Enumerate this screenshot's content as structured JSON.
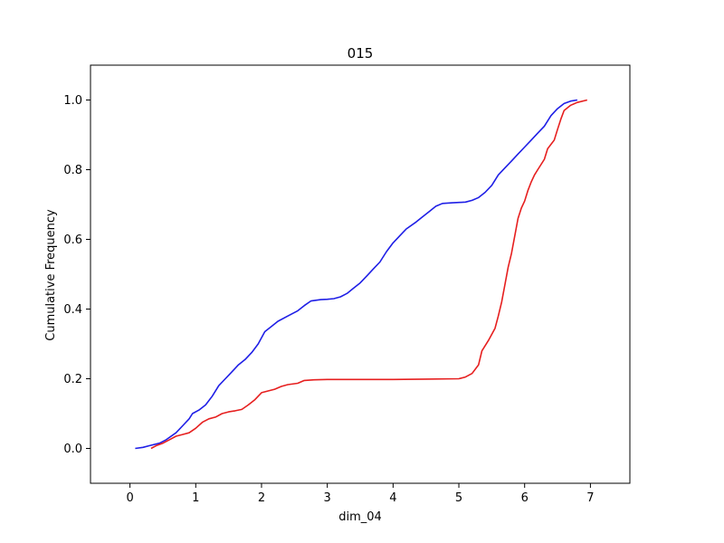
{
  "chart_data": {
    "type": "line",
    "title": "015",
    "xlabel": "dim_04",
    "ylabel": "Cumulative Frequency",
    "xlim": [
      -0.6,
      7.6
    ],
    "ylim": [
      -0.1,
      1.1
    ],
    "xticks": [
      0,
      1,
      2,
      3,
      4,
      5,
      6,
      7
    ],
    "yticks": [
      0.0,
      0.2,
      0.4,
      0.6,
      0.8,
      1.0
    ],
    "xtick_labels": [
      "0",
      "1",
      "2",
      "3",
      "4",
      "5",
      "6",
      "7"
    ],
    "ytick_labels": [
      "0.0",
      "0.2",
      "0.4",
      "0.6",
      "0.8",
      "1.0"
    ],
    "grid": false,
    "legend": "none",
    "series": [
      {
        "color": "#1f1fe6",
        "points": [
          [
            0.08,
            0.0
          ],
          [
            0.2,
            0.003
          ],
          [
            0.3,
            0.008
          ],
          [
            0.45,
            0.015
          ],
          [
            0.55,
            0.025
          ],
          [
            0.7,
            0.045
          ],
          [
            0.8,
            0.065
          ],
          [
            0.9,
            0.085
          ],
          [
            0.95,
            0.1
          ],
          [
            1.05,
            0.11
          ],
          [
            1.15,
            0.125
          ],
          [
            1.25,
            0.15
          ],
          [
            1.35,
            0.18
          ],
          [
            1.45,
            0.2
          ],
          [
            1.55,
            0.22
          ],
          [
            1.65,
            0.24
          ],
          [
            1.75,
            0.255
          ],
          [
            1.85,
            0.275
          ],
          [
            1.95,
            0.3
          ],
          [
            2.05,
            0.335
          ],
          [
            2.15,
            0.35
          ],
          [
            2.25,
            0.365
          ],
          [
            2.4,
            0.38
          ],
          [
            2.55,
            0.395
          ],
          [
            2.65,
            0.41
          ],
          [
            2.75,
            0.423
          ],
          [
            2.9,
            0.427
          ],
          [
            3.0,
            0.428
          ],
          [
            3.1,
            0.43
          ],
          [
            3.2,
            0.435
          ],
          [
            3.3,
            0.445
          ],
          [
            3.4,
            0.46
          ],
          [
            3.5,
            0.475
          ],
          [
            3.6,
            0.495
          ],
          [
            3.7,
            0.515
          ],
          [
            3.8,
            0.535
          ],
          [
            3.9,
            0.565
          ],
          [
            4.0,
            0.59
          ],
          [
            4.1,
            0.61
          ],
          [
            4.2,
            0.63
          ],
          [
            4.35,
            0.65
          ],
          [
            4.45,
            0.665
          ],
          [
            4.55,
            0.68
          ],
          [
            4.65,
            0.695
          ],
          [
            4.75,
            0.703
          ],
          [
            4.9,
            0.705
          ],
          [
            5.0,
            0.706
          ],
          [
            5.1,
            0.707
          ],
          [
            5.2,
            0.712
          ],
          [
            5.3,
            0.72
          ],
          [
            5.4,
            0.735
          ],
          [
            5.5,
            0.755
          ],
          [
            5.6,
            0.785
          ],
          [
            5.7,
            0.805
          ],
          [
            5.8,
            0.825
          ],
          [
            5.9,
            0.845
          ],
          [
            6.0,
            0.865
          ],
          [
            6.1,
            0.885
          ],
          [
            6.2,
            0.905
          ],
          [
            6.3,
            0.925
          ],
          [
            6.4,
            0.955
          ],
          [
            6.5,
            0.975
          ],
          [
            6.6,
            0.99
          ],
          [
            6.7,
            0.997
          ],
          [
            6.8,
            1.0
          ]
        ]
      },
      {
        "color": "#e61f1f",
        "points": [
          [
            0.32,
            0.0
          ],
          [
            0.4,
            0.008
          ],
          [
            0.5,
            0.015
          ],
          [
            0.6,
            0.025
          ],
          [
            0.7,
            0.035
          ],
          [
            0.8,
            0.04
          ],
          [
            0.9,
            0.045
          ],
          [
            1.0,
            0.058
          ],
          [
            1.1,
            0.075
          ],
          [
            1.2,
            0.085
          ],
          [
            1.3,
            0.09
          ],
          [
            1.4,
            0.1
          ],
          [
            1.5,
            0.105
          ],
          [
            1.6,
            0.108
          ],
          [
            1.7,
            0.112
          ],
          [
            1.8,
            0.125
          ],
          [
            1.9,
            0.14
          ],
          [
            2.0,
            0.16
          ],
          [
            2.1,
            0.165
          ],
          [
            2.2,
            0.17
          ],
          [
            2.3,
            0.178
          ],
          [
            2.4,
            0.183
          ],
          [
            2.55,
            0.187
          ],
          [
            2.65,
            0.195
          ],
          [
            2.8,
            0.197
          ],
          [
            3.0,
            0.198
          ],
          [
            3.5,
            0.198
          ],
          [
            4.0,
            0.198
          ],
          [
            4.5,
            0.199
          ],
          [
            5.0,
            0.2
          ],
          [
            5.1,
            0.205
          ],
          [
            5.2,
            0.215
          ],
          [
            5.3,
            0.24
          ],
          [
            5.35,
            0.28
          ],
          [
            5.45,
            0.31
          ],
          [
            5.55,
            0.345
          ],
          [
            5.6,
            0.38
          ],
          [
            5.65,
            0.42
          ],
          [
            5.7,
            0.47
          ],
          [
            5.75,
            0.52
          ],
          [
            5.8,
            0.56
          ],
          [
            5.85,
            0.61
          ],
          [
            5.9,
            0.66
          ],
          [
            5.95,
            0.69
          ],
          [
            6.0,
            0.71
          ],
          [
            6.05,
            0.74
          ],
          [
            6.1,
            0.765
          ],
          [
            6.15,
            0.785
          ],
          [
            6.2,
            0.8
          ],
          [
            6.3,
            0.83
          ],
          [
            6.35,
            0.86
          ],
          [
            6.45,
            0.885
          ],
          [
            6.5,
            0.915
          ],
          [
            6.55,
            0.945
          ],
          [
            6.6,
            0.97
          ],
          [
            6.7,
            0.985
          ],
          [
            6.8,
            0.993
          ],
          [
            6.95,
            1.0
          ]
        ]
      }
    ]
  }
}
